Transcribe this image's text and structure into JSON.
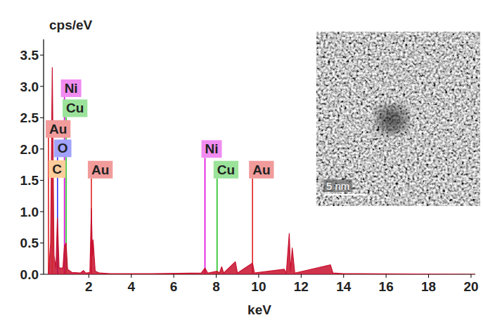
{
  "chart_data": {
    "type": "line",
    "y_label": "cps/eV",
    "x_label": "keV",
    "color": "#c8102e",
    "x": [
      0.1,
      0.2,
      0.28,
      0.36,
      0.45,
      0.52,
      0.6,
      0.78,
      0.85,
      0.93,
      1.0,
      1.2,
      1.6,
      1.75,
      1.85,
      2.05,
      2.12,
      2.17,
      2.2,
      2.3,
      2.5,
      3.0,
      5.0,
      7.3,
      7.47,
      7.6,
      8.04,
      8.15,
      8.26,
      8.35,
      8.9,
      9.0,
      9.71,
      9.8,
      11.2,
      11.3,
      11.44,
      11.5,
      11.58,
      11.7,
      13.38,
      13.5,
      14.0,
      20.2
    ],
    "values": [
      0.0,
      0.5,
      3.3,
      0.3,
      0.1,
      0.9,
      0.1,
      0.1,
      0.45,
      0.5,
      0.08,
      0.03,
      0.02,
      0.06,
      0.02,
      0.03,
      1.05,
      0.3,
      0.55,
      0.05,
      0.02,
      0.01,
      0.01,
      0.02,
      0.1,
      0.02,
      0.05,
      0.02,
      0.12,
      0.02,
      0.2,
      0.02,
      0.18,
      0.02,
      0.08,
      0.02,
      0.65,
      0.05,
      0.42,
      0.02,
      0.15,
      0.02,
      0.01,
      0.0
    ],
    "xlim": [
      -0.13,
      20.2
    ],
    "ylim": [
      0,
      3.75
    ],
    "xticks": [
      2,
      4,
      6,
      8,
      10,
      12,
      14,
      16,
      18,
      20
    ],
    "yticks": [
      {
        "value": 0,
        "label": "0.0"
      },
      0.5,
      {
        "value": 1,
        "label": "1.0"
      },
      1.5,
      {
        "value": 2,
        "label": "2.0"
      },
      2.5,
      {
        "value": 3,
        "label": "3.0"
      },
      3.5
    ],
    "markers": [
      {
        "label": "Ni",
        "x": 0.851,
        "y": 2.83,
        "color": "#e000e0"
      },
      {
        "label": "Cu",
        "x": 0.93,
        "y": 2.51,
        "color": "#20c020"
      },
      {
        "label": "Au",
        "x": 0.1,
        "y": 2.18,
        "color": "#e02020"
      },
      {
        "label": "O",
        "x": 0.525,
        "y": 1.87,
        "color": "#3030ff"
      },
      {
        "label": "C",
        "x": 0.277,
        "y": 1.54,
        "color": "#ff9020"
      },
      {
        "label": "Au",
        "x": 2.12,
        "y": 1.53,
        "color": "#e02020"
      },
      {
        "label": "Ni",
        "x": 7.47,
        "y": 1.86,
        "color": "#e000e0"
      },
      {
        "label": "Cu",
        "x": 8.04,
        "y": 1.53,
        "color": "#20c020"
      },
      {
        "label": "Au",
        "x": 9.71,
        "y": 1.53,
        "color": "#e02020"
      }
    ],
    "inset": {
      "scale_bar": "5 nm"
    }
  }
}
